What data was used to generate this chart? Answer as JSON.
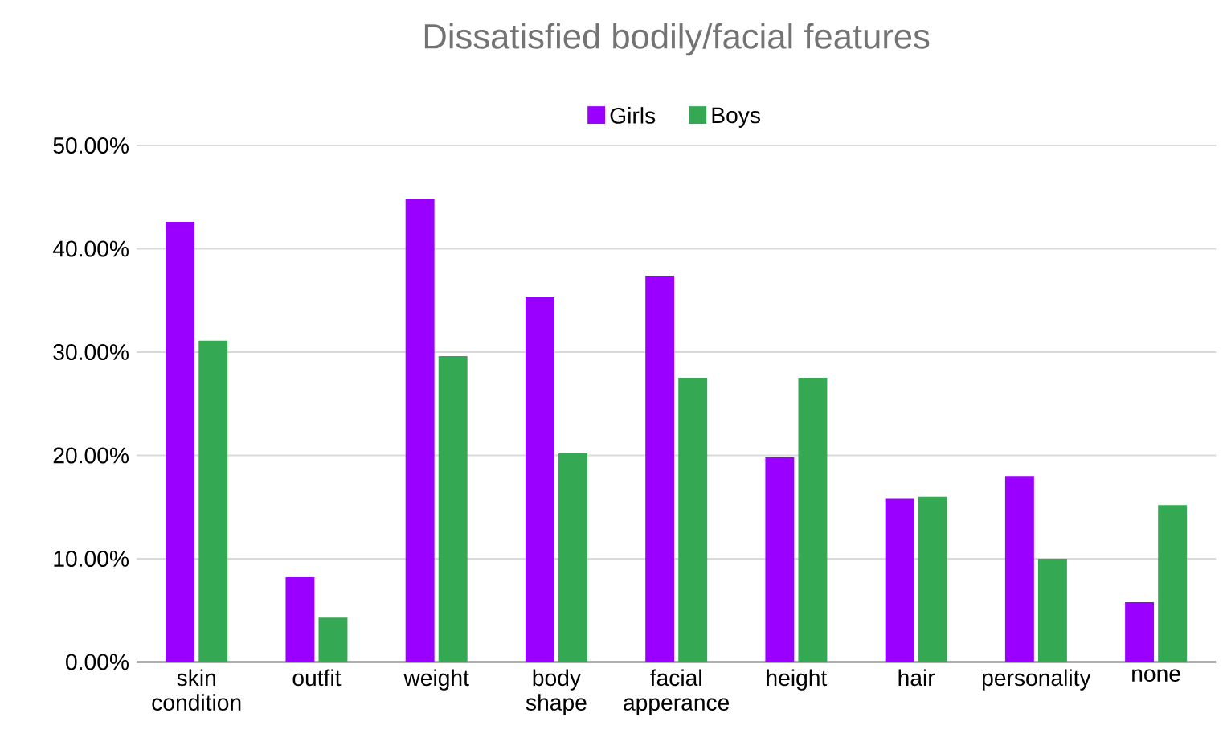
{
  "chart_data": {
    "type": "bar",
    "title": "Dissatisfied bodily/facial features",
    "categories": [
      "skin condition",
      "outfit",
      "weight",
      "body shape",
      "facial apperance",
      "height",
      "hair",
      "personality",
      "none"
    ],
    "series": [
      {
        "name": "Girls",
        "color": "#9900ff",
        "values": [
          42.6,
          8.2,
          44.8,
          35.3,
          37.4,
          19.8,
          15.8,
          18.0,
          5.8
        ]
      },
      {
        "name": "Boys",
        "color": "#34a853",
        "values": [
          31.1,
          4.3,
          29.6,
          20.2,
          27.5,
          27.5,
          16.0,
          10.0,
          15.2
        ]
      }
    ],
    "ylim": [
      0,
      50
    ],
    "yticks": [
      {
        "value": 0,
        "label": "0.00%"
      },
      {
        "value": 10,
        "label": "10.00%"
      },
      {
        "value": 20,
        "label": "20.00%"
      },
      {
        "value": 30,
        "label": "30.00%"
      },
      {
        "value": 40,
        "label": "40.00%"
      },
      {
        "value": 50,
        "label": "50.00%"
      }
    ],
    "grid": "y",
    "legend": "top"
  }
}
